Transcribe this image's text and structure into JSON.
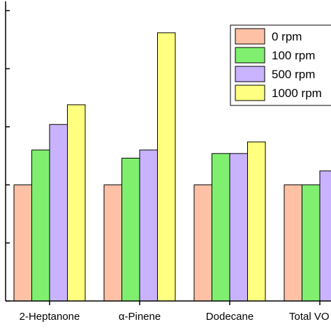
{
  "chart_data": {
    "type": "bar",
    "categories": [
      "2-Heptanone",
      "α-Pinene",
      "Dodecane",
      "Total VO"
    ],
    "series": [
      {
        "name": "0 rpm",
        "values": [
          1.0,
          1.0,
          1.0,
          1.0
        ],
        "color": "#ffc1a6"
      },
      {
        "name": "100 rpm",
        "values": [
          1.3,
          1.23,
          1.27,
          1.0
        ],
        "color": "#80ef70"
      },
      {
        "name": "500 rpm",
        "values": [
          1.52,
          1.3,
          1.27,
          1.12
        ],
        "color": "#c9b3ff"
      },
      {
        "name": "1000 rpm",
        "values": [
          1.69,
          2.31,
          1.37,
          null
        ],
        "color": "#ffff80"
      }
    ],
    "ylim": [
      0,
      2.58
    ],
    "yticks": [
      0,
      0.5,
      1.0,
      1.5,
      2.0,
      2.5
    ],
    "show_y_tick_labels": false,
    "legend_position": "top-right",
    "grid": false
  }
}
